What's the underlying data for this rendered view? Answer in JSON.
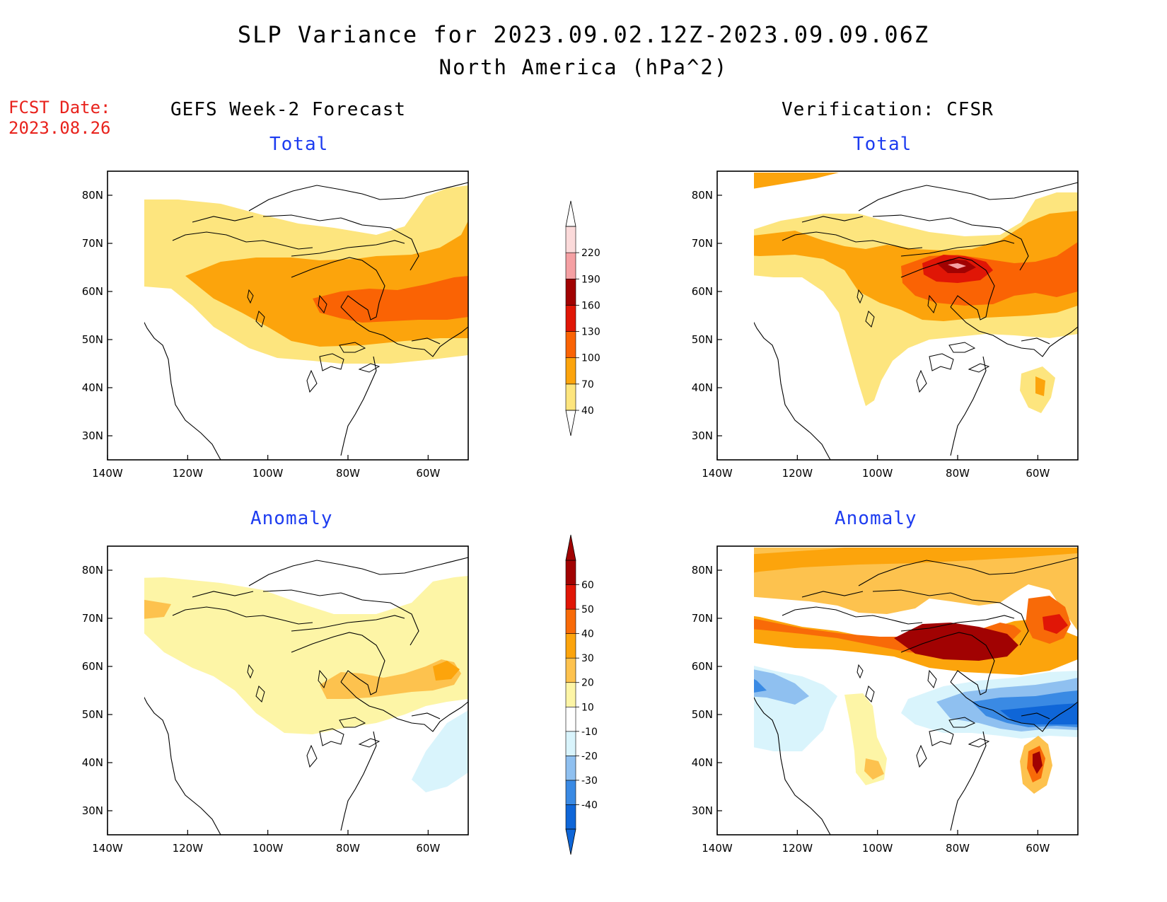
{
  "header": {
    "title": "SLP Variance for 2023.09.02.12Z-2023.09.09.06Z",
    "subtitle": "North America (hPa^2)",
    "fcst_date_label": "FCST Date:",
    "fcst_date_value": "2023.08.26"
  },
  "columns": {
    "left": "GEFS Week-2 Forecast",
    "right": "Verification: CFSR"
  },
  "panels": {
    "total_label": "Total",
    "anomaly_label": "Anomaly"
  },
  "axes": {
    "lon_labels": [
      "140W",
      "120W",
      "100W",
      "80W",
      "60W"
    ],
    "lat_labels": [
      "80N",
      "70N",
      "60N",
      "50N",
      "40N",
      "30N"
    ],
    "lon_range": [
      -140,
      -50
    ],
    "lat_range": [
      25,
      85
    ]
  },
  "colorbars": {
    "total": {
      "levels": [
        "40",
        "70",
        "100",
        "130",
        "160",
        "190",
        "220"
      ],
      "colors": [
        "#fde57e",
        "#fca40c",
        "#fa6304",
        "#e01606",
        "#a10202",
        "#f5a0a3",
        "#fbdada"
      ]
    },
    "anomaly": {
      "levels": [
        "-40",
        "-30",
        "-20",
        "-10",
        "10",
        "20",
        "30",
        "40",
        "50",
        "60"
      ],
      "colors": [
        "#0f66d8",
        "#3a8ae4",
        "#8fc0f0",
        "#d9f4fc",
        "#ffffff",
        "#fdf5a6",
        "#fdc24e",
        "#fca40c",
        "#f86a08",
        "#e01606",
        "#a10202"
      ]
    }
  },
  "colors": {
    "fcst_date": "#e8221c",
    "panel_title": "#1d3cf0"
  }
}
